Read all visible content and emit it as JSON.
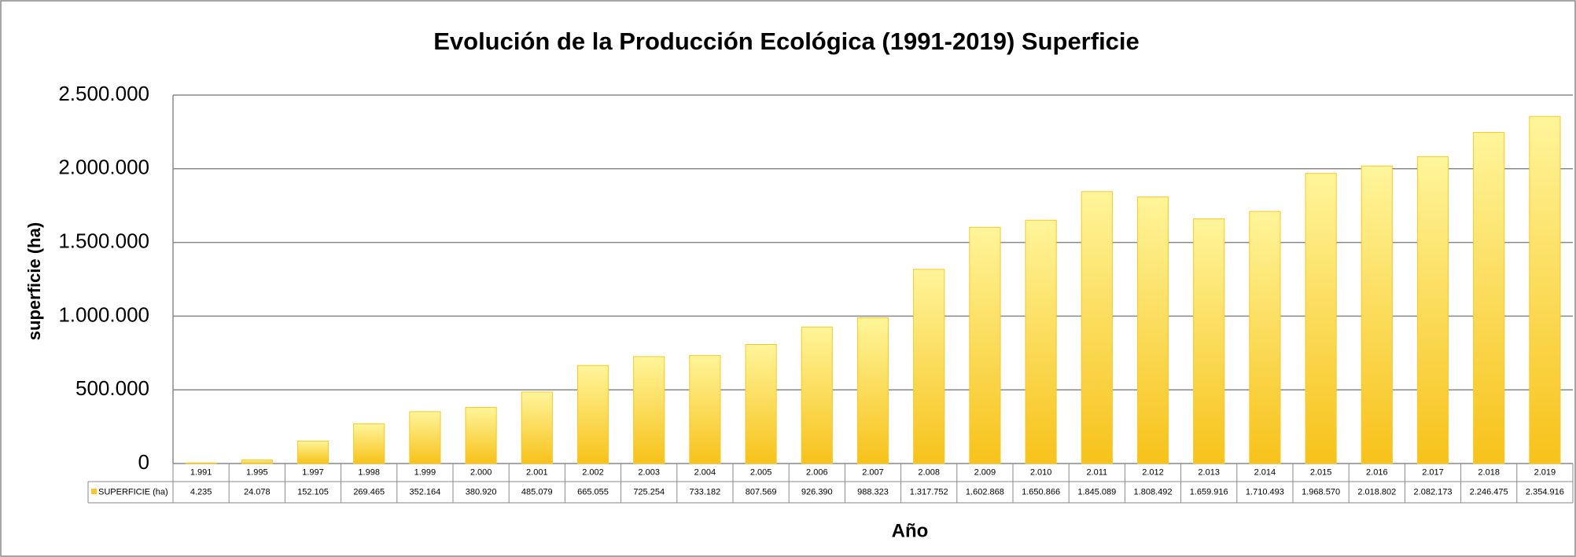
{
  "chart_data": {
    "type": "bar",
    "title": "Evolución de la Producción Ecológica (1991-2019) Superficie",
    "ylabel": "superficie (ha)",
    "xlabel": "Año",
    "categories": [
      "1.991",
      "1.995",
      "1.997",
      "1.998",
      "1.999",
      "2.000",
      "2.001",
      "2.002",
      "2.003",
      "2.004",
      "2.005",
      "2.006",
      "2.007",
      "2.008",
      "2.009",
      "2.010",
      "2.011",
      "2.012",
      "2.013",
      "2.014",
      "2.015",
      "2.016",
      "2.017",
      "2.018",
      "2.019"
    ],
    "series": [
      {
        "name": "SUPERFICIE (ha)",
        "color": "#f7c82a",
        "values": [
          4235,
          24078,
          152105,
          269465,
          352164,
          380920,
          485079,
          665055,
          725254,
          733182,
          807569,
          926390,
          988323,
          1317752,
          1602868,
          1650866,
          1845089,
          1808492,
          1659916,
          1710493,
          1968570,
          2018802,
          2082173,
          2246475,
          2354916
        ],
        "value_labels": [
          "4.235",
          "24.078",
          "152.105",
          "269.465",
          "352.164",
          "380.920",
          "485.079",
          "665.055",
          "725.254",
          "733.182",
          "807.569",
          "926.390",
          "988.323",
          "1.317.752",
          "1.602.868",
          "1.650.866",
          "1.845.089",
          "1.808.492",
          "1.659.916",
          "1.710.493",
          "1.968.570",
          "2.018.802",
          "2.082.173",
          "2.246.475",
          "2.354.916"
        ]
      }
    ],
    "ylim": [
      0,
      2500000
    ],
    "yticks": [
      0,
      {
        "value": 500000,
        "label": "500.000"
      },
      {
        "value": 1000000,
        "label": "1.000.000"
      },
      {
        "value": 1500000,
        "label": "1.500.000"
      },
      {
        "value": 2000000,
        "label": "2.000.000"
      },
      {
        "value": 2500000,
        "label": "2.500.000"
      }
    ],
    "grid": true
  }
}
